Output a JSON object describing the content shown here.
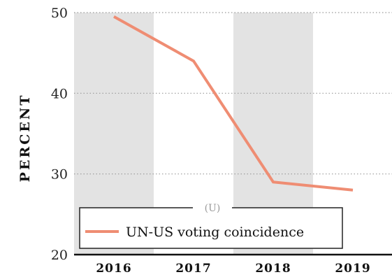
{
  "chart_data": {
    "type": "line",
    "ylabel": "PERCENT",
    "categories": [
      "2016",
      "2017",
      "2018",
      "2019"
    ],
    "ylim": [
      20,
      50
    ],
    "yticks": [
      20,
      30,
      40,
      50
    ],
    "grid": true,
    "series": [
      {
        "name": "UN-US voting coincidence",
        "values": [
          49.5,
          44,
          29,
          28
        ],
        "color": "#ef8d73"
      }
    ],
    "legend": {
      "placement": "bottom-left",
      "note": "(U)"
    },
    "colors": {
      "shade": "#e3e3e3",
      "grid": "#999999",
      "axis": "#111111"
    }
  }
}
